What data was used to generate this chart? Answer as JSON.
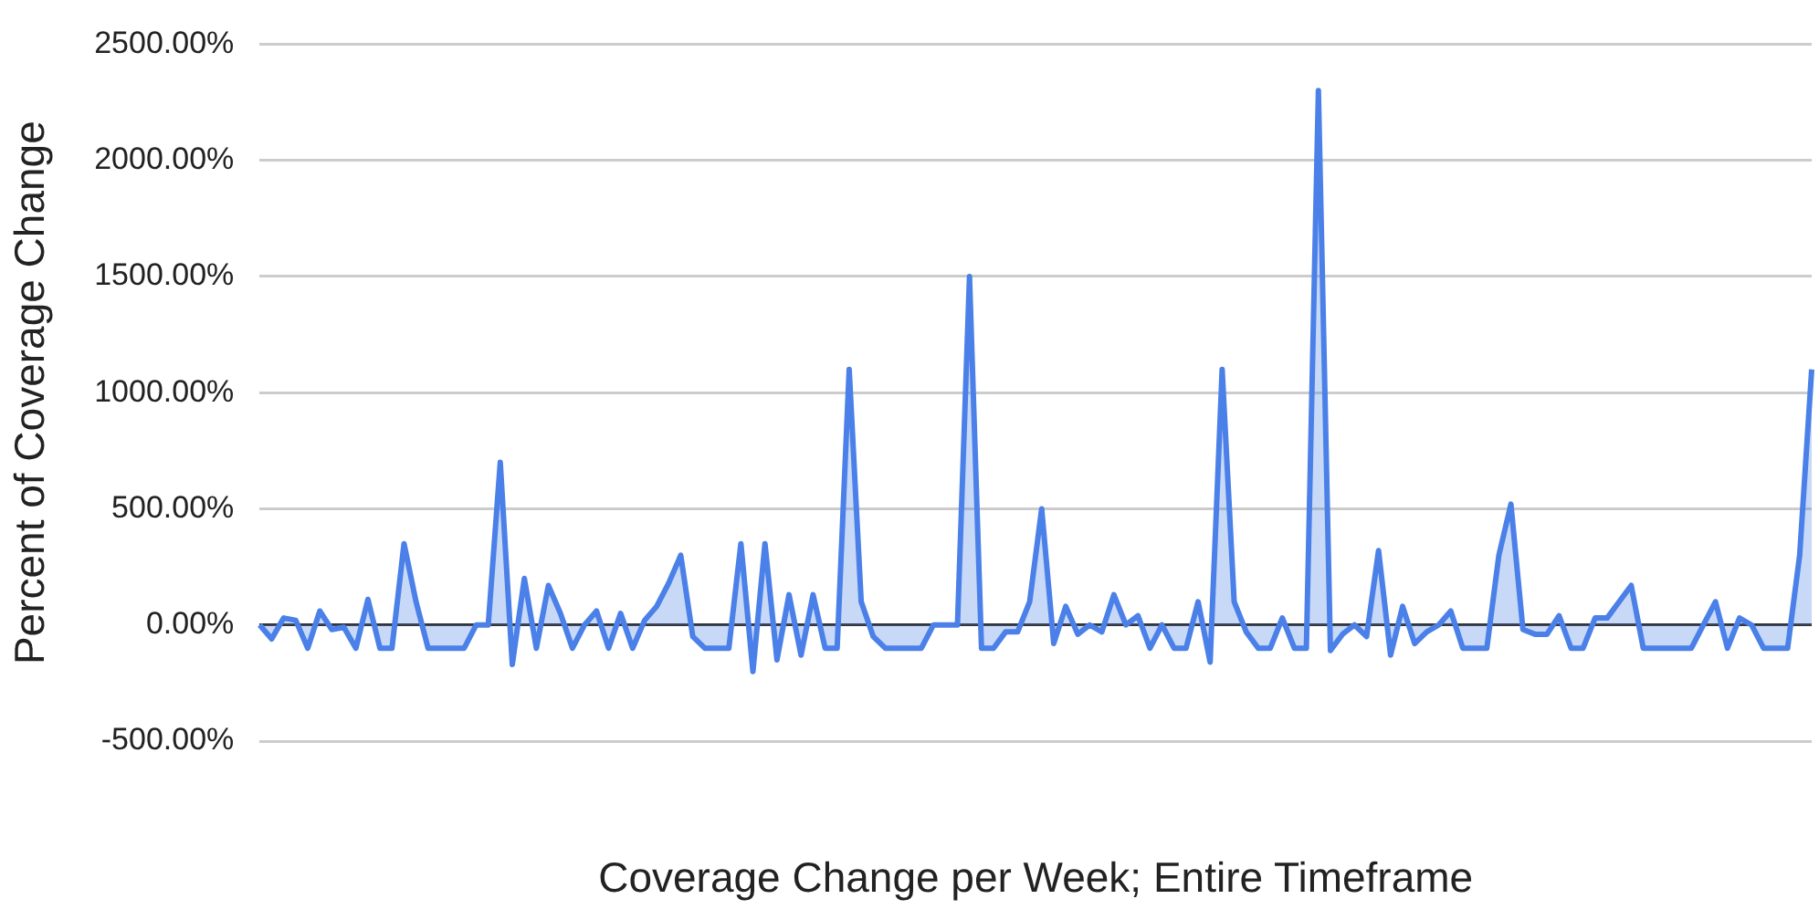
{
  "chart_data": {
    "type": "area",
    "xlabel": "Coverage Change per Week; Entire Timeframe",
    "ylabel": "Percent of Coverage Change",
    "categories": [
      null,
      null,
      null,
      null,
      null,
      null,
      null,
      null,
      null,
      null,
      null,
      null,
      null,
      null,
      null,
      null,
      null,
      null,
      null,
      null,
      null,
      null,
      null,
      null,
      null,
      null,
      null,
      null,
      null,
      null,
      null,
      null,
      null,
      null,
      null,
      null,
      null,
      null,
      null,
      null,
      null,
      null,
      null,
      null,
      null,
      null,
      null,
      null,
      null,
      null,
      null,
      null,
      null,
      null,
      null,
      null,
      null,
      null,
      null,
      null,
      null,
      null,
      null,
      null,
      null,
      null,
      null,
      null,
      null,
      null,
      null,
      null,
      null,
      null,
      null,
      null,
      null,
      null,
      null,
      null,
      null,
      null,
      null,
      null,
      null,
      null,
      null,
      null,
      null,
      null,
      null,
      null,
      null,
      null,
      null,
      null,
      null,
      null,
      null,
      null,
      null,
      null,
      null,
      null,
      null,
      null,
      null,
      null,
      null,
      null,
      null,
      null,
      null,
      null,
      null,
      null,
      null,
      null,
      null,
      null,
      null,
      null,
      null,
      null,
      null,
      null,
      null,
      null,
      null,
      null
    ],
    "series": [
      {
        "color": "#4a80e8",
        "values": [
          0,
          -60,
          30,
          20,
          -100,
          60,
          -20,
          -10,
          -100,
          110,
          -100,
          -100,
          350,
          100,
          -100,
          -100,
          -100,
          -100,
          0,
          0,
          700,
          -170,
          200,
          -100,
          170,
          50,
          -100,
          0,
          60,
          -100,
          50,
          -100,
          20,
          80,
          180,
          300,
          -50,
          -100,
          -100,
          -100,
          350,
          -200,
          350,
          -150,
          130,
          -130,
          130,
          -100,
          -100,
          1100,
          100,
          -50,
          -100,
          -100,
          -100,
          -100,
          0,
          0,
          0,
          1500,
          -100,
          -100,
          -30,
          -30,
          100,
          500,
          -80,
          80,
          -40,
          0,
          -30,
          130,
          0,
          40,
          -100,
          0,
          -100,
          -100,
          100,
          -160,
          1100,
          100,
          -30,
          -100,
          -100,
          30,
          -100,
          -100,
          2300,
          -110,
          -40,
          0,
          -50,
          320,
          -130,
          80,
          -80,
          -30,
          0,
          60,
          -100,
          -100,
          -100,
          300,
          520,
          -20,
          -40,
          -40,
          40,
          -100,
          -100,
          30,
          30,
          100,
          170,
          -100,
          -100,
          -100,
          -100,
          -100,
          0,
          100,
          -100,
          30,
          0,
          -100,
          -100,
          -100,
          300,
          1100
        ]
      }
    ],
    "ylim": [
      -500,
      2500
    ],
    "yticks": [
      {
        "value": -500,
        "label": "-500.00%"
      },
      {
        "value": 0,
        "label": "0.00%"
      },
      {
        "value": 500,
        "label": "500.00%"
      },
      {
        "value": 1000,
        "label": "1000.00%"
      },
      {
        "value": 1500,
        "label": "1500.00%"
      },
      {
        "value": 2000,
        "label": "2000.00%"
      },
      {
        "value": 2500,
        "label": "2500.00%"
      }
    ],
    "grid": "y",
    "legend": false,
    "marker": "none",
    "line_style": "solid"
  }
}
